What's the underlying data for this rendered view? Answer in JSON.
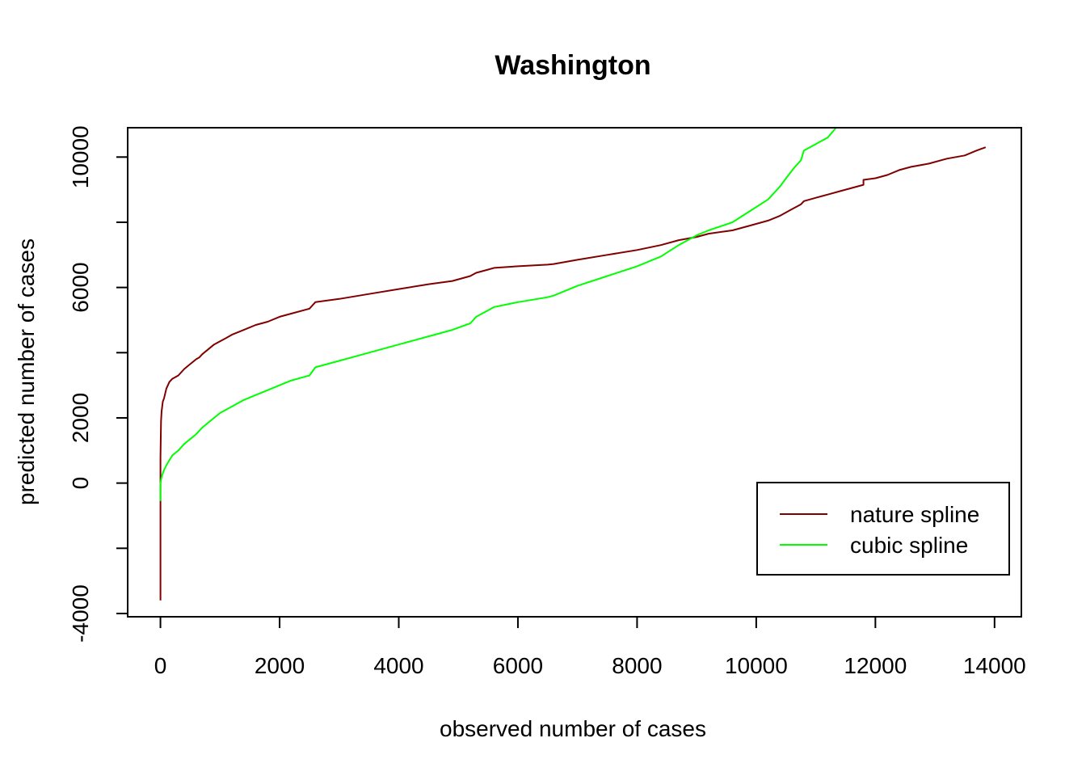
{
  "chart_data": {
    "type": "line",
    "title": "Washington",
    "xlabel": "observed number of cases",
    "ylabel": "predicted number of cases",
    "xlim": [
      -550,
      14450
    ],
    "ylim": [
      -4100,
      10900
    ],
    "x_ticks": [
      0,
      2000,
      4000,
      6000,
      8000,
      10000,
      12000,
      14000
    ],
    "x_tick_labels": [
      "0",
      "2000",
      "4000",
      "6000",
      "8000",
      "10000",
      "12000",
      "14000"
    ],
    "y_ticks": [
      -4000,
      -2000,
      0,
      2000,
      4000,
      6000,
      8000,
      10000
    ],
    "y_tick_labels": [
      "-4000",
      "",
      "0",
      "2000",
      "",
      "6000",
      "",
      "10000"
    ],
    "grid": false,
    "legend_position": "bottom-right",
    "series": [
      {
        "name": "nature spline",
        "color": "#800000",
        "x": [
          0,
          0,
          0,
          10,
          20,
          40,
          60,
          100,
          150,
          200,
          300,
          400,
          500,
          600,
          650,
          700,
          800,
          900,
          1000,
          1100,
          1200,
          1400,
          1600,
          1800,
          2000,
          2200,
          2500,
          2600,
          2800,
          3000,
          3500,
          4000,
          4500,
          4900,
          5200,
          5300,
          5500,
          5600,
          6000,
          6500,
          6600,
          7000,
          7500,
          8000,
          8400,
          8700,
          9000,
          9200,
          9600,
          9900,
          10200,
          10400,
          10600,
          10750,
          10800,
          11000,
          11200,
          11400,
          11600,
          11800,
          11800,
          12000,
          12200,
          12400,
          12600,
          12900,
          13200,
          13500,
          13700,
          13850
        ],
        "y": [
          -3600,
          0,
          800,
          1900,
          2200,
          2500,
          2600,
          2900,
          3100,
          3200,
          3300,
          3500,
          3650,
          3800,
          3850,
          3950,
          4100,
          4250,
          4350,
          4450,
          4550,
          4700,
          4850,
          4950,
          5100,
          5200,
          5350,
          5550,
          5600,
          5650,
          5800,
          5950,
          6100,
          6200,
          6350,
          6450,
          6550,
          6600,
          6650,
          6700,
          6720,
          6850,
          7000,
          7150,
          7300,
          7450,
          7550,
          7650,
          7750,
          7900,
          8050,
          8200,
          8400,
          8550,
          8650,
          8750,
          8850,
          8950,
          9050,
          9150,
          9300,
          9350,
          9450,
          9600,
          9700,
          9800,
          9950,
          10050,
          10200,
          10300
        ]
      },
      {
        "name": "cubic spline",
        "color": "#00ff00",
        "x": [
          0,
          0,
          10,
          30,
          60,
          100,
          150,
          200,
          300,
          400,
          500,
          600,
          650,
          700,
          800,
          900,
          1000,
          1100,
          1200,
          1400,
          1600,
          1800,
          2000,
          2200,
          2500,
          2600,
          2800,
          3000,
          3500,
          4000,
          4500,
          4900,
          5200,
          5300,
          5500,
          5600,
          6000,
          6500,
          6600,
          7000,
          7500,
          8000,
          8400,
          8700,
          9000,
          9200,
          9600,
          9900,
          10200,
          10400,
          10500,
          10650,
          10750,
          10800,
          11000,
          11200,
          11340
        ],
        "y": [
          -550,
          0,
          100,
          250,
          400,
          550,
          700,
          850,
          1000,
          1200,
          1350,
          1500,
          1600,
          1700,
          1850,
          2000,
          2150,
          2250,
          2350,
          2550,
          2700,
          2850,
          3000,
          3150,
          3300,
          3550,
          3650,
          3750,
          4000,
          4250,
          4500,
          4700,
          4900,
          5100,
          5300,
          5400,
          5550,
          5700,
          5750,
          6050,
          6350,
          6650,
          6950,
          7300,
          7600,
          7750,
          8000,
          8350,
          8700,
          9100,
          9350,
          9700,
          9900,
          10200,
          10400,
          10600,
          10900
        ]
      }
    ]
  }
}
